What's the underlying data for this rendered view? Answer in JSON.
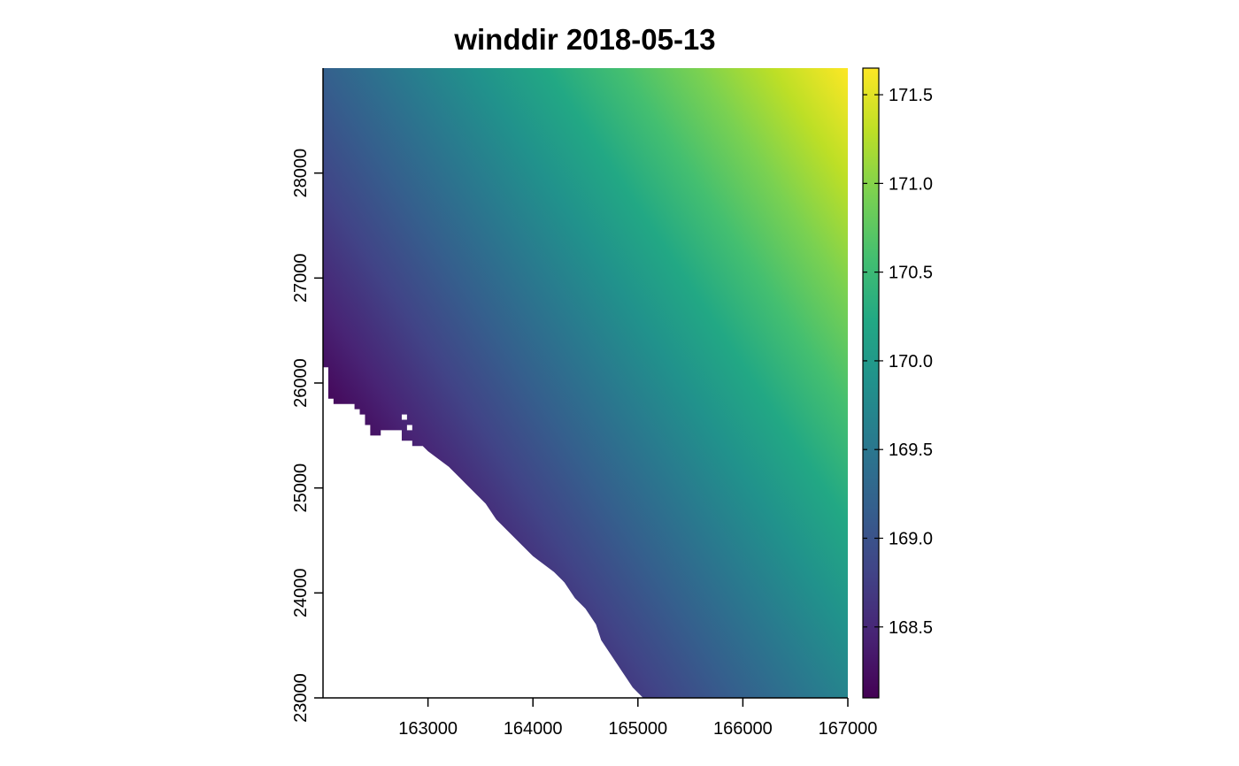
{
  "chart_data": {
    "type": "heatmap",
    "title": "winddir 2018-05-13",
    "xlabel": "",
    "ylabel": "",
    "xlim": [
      162000,
      167000
    ],
    "ylim": [
      23000,
      29000
    ],
    "x_ticks": [
      163000,
      164000,
      165000,
      166000,
      167000
    ],
    "x_tick_labels": [
      "163000",
      "164000",
      "165000",
      "166000",
      "167000"
    ],
    "y_ticks": [
      23000,
      24000,
      25000,
      26000,
      27000,
      28000
    ],
    "y_tick_labels": [
      "23000",
      "24000",
      "25000",
      "26000",
      "27000",
      "28000"
    ],
    "colorbar": {
      "palette": "viridis",
      "range": [
        168.1,
        171.65
      ],
      "ticks": [
        168.5,
        169.0,
        169.5,
        170.0,
        170.5,
        171.0,
        171.5
      ],
      "tick_labels": [
        "168.5",
        "169.0",
        "169.5",
        "170.0",
        "170.5",
        "171.0",
        "171.5"
      ],
      "colors": [
        "#440154",
        "#482475",
        "#414487",
        "#355f8d",
        "#2a788e",
        "#21918c",
        "#22a884",
        "#44bf70",
        "#7ad151",
        "#bddf26",
        "#fde725"
      ]
    },
    "corner_values": {
      "top_left": 169.55,
      "top_right": 171.65,
      "bottom_right": 169.55,
      "coast_min": 168.1
    },
    "no_data_color": "#ffffff"
  }
}
